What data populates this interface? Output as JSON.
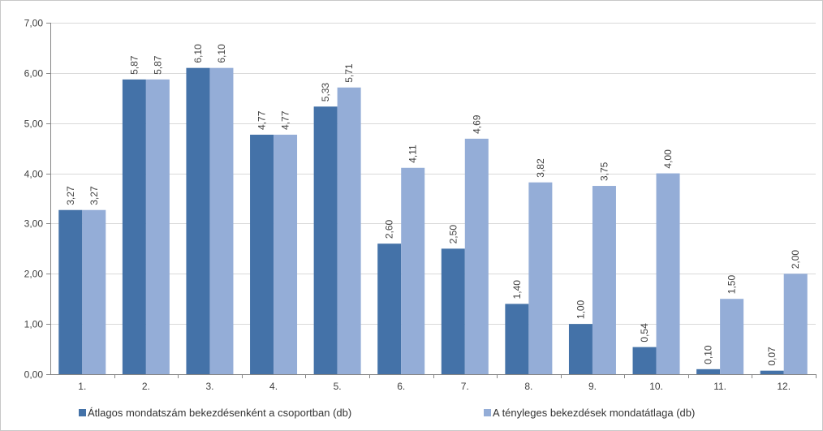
{
  "chart_data": {
    "type": "bar",
    "categories": [
      "1.",
      "2.",
      "3.",
      "4.",
      "5.",
      "6.",
      "7.",
      "8.",
      "9.",
      "10.",
      "11.",
      "12."
    ],
    "series": [
      {
        "name": "Átlagos mondatszám bekezdésenként a csoportban (db)",
        "color": "#4472A8",
        "values": [
          3.27,
          5.87,
          6.1,
          4.77,
          5.33,
          2.6,
          2.5,
          1.4,
          1.0,
          0.54,
          0.1,
          0.07
        ],
        "labels": [
          "3,27",
          "5,87",
          "6,10",
          "4,77",
          "5,33",
          "2,60",
          "2,50",
          "1,40",
          "1,00",
          "0,54",
          "0,10",
          "0,07"
        ]
      },
      {
        "name": "A tényleges bekezdések mondatátlaga (db)",
        "color": "#94ADD7",
        "values": [
          3.27,
          5.87,
          6.1,
          4.77,
          5.71,
          4.11,
          4.69,
          3.82,
          3.75,
          4.0,
          1.5,
          2.0
        ],
        "labels": [
          "3,27",
          "5,87",
          "6,10",
          "4,77",
          "5,71",
          "4,11",
          "4,69",
          "3,82",
          "3,75",
          "4,00",
          "1,50",
          "2,00"
        ]
      }
    ],
    "ylim": [
      0,
      7
    ],
    "yticks": [
      0,
      1,
      2,
      3,
      4,
      5,
      6,
      7
    ],
    "ytick_labels": [
      "0,00",
      "1,00",
      "2,00",
      "3,00",
      "4,00",
      "5,00",
      "6,00",
      "7,00"
    ],
    "grid": true,
    "legend_position": "bottom"
  }
}
